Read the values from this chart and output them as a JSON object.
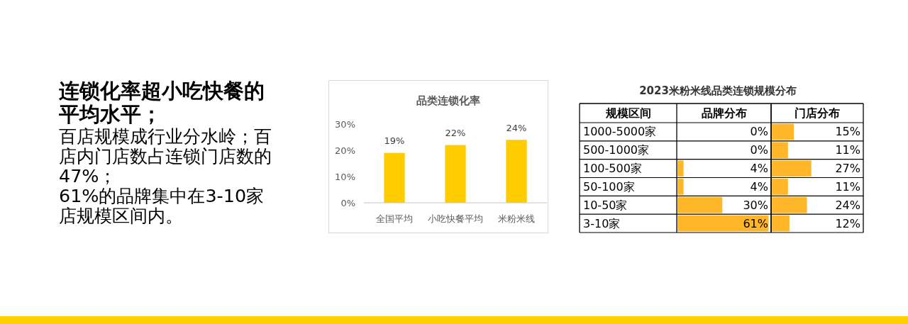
{
  "chart_data": [
    {
      "type": "other",
      "title": "连锁化率超小吃快餐的平均水平；",
      "annotations": [
        "百店规模成行业分水岭；百店内门店数占连锁门店数的47%；",
        "61%的品牌集中在3-10家店规模区间内。"
      ]
    },
    {
      "type": "bar",
      "title": "品类连锁化率",
      "categories": [
        "全国平均",
        "小吃快餐平均",
        "米粉米线"
      ],
      "values": [
        19,
        22,
        24
      ],
      "value_labels": [
        "19%",
        "22%",
        "24%"
      ],
      "color": "#FFCC00",
      "ylim": [
        0,
        30
      ],
      "yticks": [
        {
          "value": 0,
          "label": "0%"
        },
        {
          "value": 10,
          "label": "10%"
        },
        {
          "value": 20,
          "label": "20%"
        },
        {
          "value": 30,
          "label": "30%"
        }
      ]
    },
    {
      "type": "bar",
      "orientation": "horizontal",
      "title": "2023米粉米线品类连锁规模分布",
      "ylabel": "规模区间",
      "categories": [
        "1000-5000家",
        "500-1000家",
        "100-500家",
        "50-100家",
        "10-50家",
        "3-10家"
      ],
      "series": [
        {
          "name": "品牌分布",
          "color": "#FFB628",
          "values": [
            0,
            0,
            4,
            4,
            30,
            61
          ],
          "value_labels": [
            "0%",
            "0%",
            "4%",
            "4%",
            "30%",
            "61%"
          ]
        }
      ],
      "xlim": [
        0,
        63
      ],
      "tick_labels": "y"
    },
    {
      "type": "bar",
      "orientation": "horizontal",
      "categories": [
        null,
        null,
        null,
        null,
        null,
        null
      ],
      "series": [
        {
          "name": "门店分布",
          "color": "#FFB628",
          "values": [
            15,
            11,
            27,
            11,
            24,
            12
          ],
          "value_labels": [
            "15%",
            "11%",
            "27%",
            "11%",
            "24%",
            "12%"
          ]
        }
      ],
      "xlim": [
        0,
        63
      ],
      "tick_labels": false
    }
  ]
}
